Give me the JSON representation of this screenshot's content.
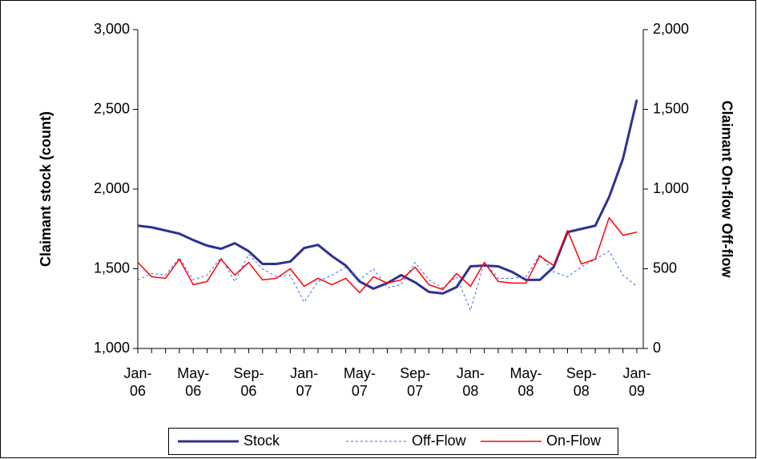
{
  "chart_data": {
    "type": "line",
    "y_label": "Claimant stock (count)",
    "y2_label": "Claimant On-flow Off-flow",
    "categories": [
      "Jan-\n06",
      null,
      null,
      null,
      "May-\n06",
      null,
      null,
      null,
      "Sep-\n06",
      null,
      null,
      null,
      "Jan-\n07",
      null,
      null,
      null,
      "May-\n07",
      null,
      null,
      null,
      "Sep-\n07",
      null,
      null,
      null,
      "Jan-\n08",
      null,
      null,
      null,
      "May-\n08",
      null,
      null,
      null,
      "Sep-\n08",
      null,
      null,
      null,
      "Jan-\n09"
    ],
    "ylim": [
      1000,
      3000
    ],
    "yticks": [
      {
        "value": 1000,
        "label": "1,000"
      },
      {
        "value": 1500,
        "label": "1,500"
      },
      {
        "value": 2000,
        "label": "2,000"
      },
      {
        "value": 2500,
        "label": "2,500"
      },
      {
        "value": 3000,
        "label": "3,000"
      }
    ],
    "y2lim": [
      0,
      2000
    ],
    "y2ticks": [
      0,
      500,
      {
        "value": 1000,
        "label": "1,000"
      },
      {
        "value": 1500,
        "label": "1,500"
      },
      {
        "value": 2000,
        "label": "2,000"
      }
    ],
    "grid": false,
    "legend": "bottom",
    "series": [
      {
        "name": "Stock",
        "color": "#2e3192",
        "width": 3,
        "dash": false,
        "values": [
          1770,
          1760,
          1740,
          1720,
          1680,
          1645,
          1625,
          1660,
          1610,
          1530,
          1530,
          1545,
          1630,
          1650,
          1580,
          1520,
          1420,
          1375,
          1410,
          1460,
          1415,
          1355,
          1345,
          1385,
          1515,
          1520,
          1515,
          1480,
          1430,
          1430,
          1510,
          1730,
          1750,
          1770,
          1950,
          2190,
          2560
        ]
      },
      {
        "name": "Off-Flow",
        "color": "#3366ff",
        "width": 1,
        "dash": true,
        "axis": "y2",
        "values": [
          430,
          470,
          460,
          570,
          430,
          460,
          570,
          420,
          590,
          500,
          450,
          460,
          290,
          420,
          460,
          510,
          430,
          500,
          380,
          400,
          540,
          430,
          380,
          450,
          240,
          540,
          440,
          440,
          450,
          590,
          480,
          450,
          510,
          560,
          610,
          460,
          390
        ]
      },
      {
        "name": "On-Flow",
        "color": "#ff0000",
        "width": 1.5,
        "dash": false,
        "axis": "y2",
        "values": [
          540,
          450,
          440,
          560,
          400,
          420,
          560,
          460,
          540,
          430,
          440,
          500,
          390,
          440,
          400,
          440,
          350,
          450,
          410,
          430,
          510,
          400,
          370,
          470,
          390,
          540,
          420,
          410,
          410,
          580,
          520,
          740,
          530,
          560,
          820,
          710,
          730
        ]
      }
    ]
  }
}
